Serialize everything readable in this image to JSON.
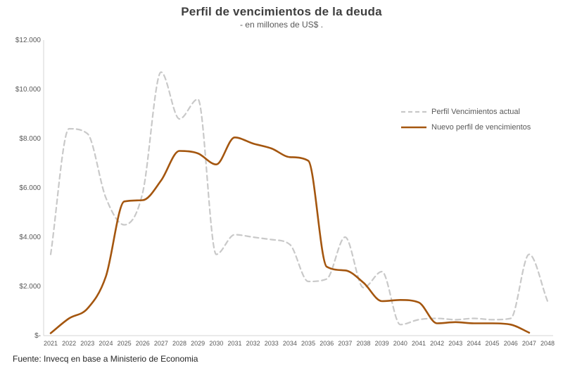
{
  "chart_data": {
    "type": "line",
    "title": "Perfil de vencimientos de la deuda",
    "subtitle": "- en millones de US$ .",
    "source": "Fuente: Invecq en base a Ministerio de Economia",
    "xlabel": "",
    "ylabel": "",
    "x": [
      2021,
      2022,
      2023,
      2024,
      2025,
      2026,
      2027,
      2028,
      2029,
      2030,
      2031,
      2032,
      2033,
      2034,
      2035,
      2036,
      2037,
      2038,
      2039,
      2040,
      2041,
      2042,
      2043,
      2044,
      2045,
      2046,
      2047,
      2048
    ],
    "ylim": [
      0,
      12000
    ],
    "yticks": [
      0,
      2000,
      4000,
      6000,
      8000,
      10000,
      12000
    ],
    "ytick_labels": [
      "$-",
      "$2.000",
      "$4.000",
      "$6.000",
      "$8.000",
      "$10.000",
      "$12.000"
    ],
    "grid": false,
    "legend_position": "center-right",
    "axis_color": "#d6d6d6",
    "series": [
      {
        "name": "Perfil Vencimientos actual",
        "color": "#c9c9c9",
        "dash": true,
        "width": 2.2,
        "values": [
          3300,
          8400,
          8200,
          5600,
          4500,
          5800,
          10700,
          8800,
          9600,
          3300,
          4100,
          4000,
          3900,
          3700,
          2200,
          2300,
          4000,
          1950,
          2600,
          450,
          650,
          700,
          650,
          700,
          650,
          700,
          3300,
          1400
        ]
      },
      {
        "name": "Nuevo perfil de vencimientos",
        "color": "#a4560f",
        "dash": false,
        "width": 2.6,
        "values": [
          100,
          700,
          1100,
          2400,
          5450,
          5500,
          6300,
          7500,
          7400,
          6950,
          8050,
          7800,
          7600,
          7250,
          7100,
          2800,
          2650,
          2150,
          1400,
          1450,
          1350,
          500,
          550,
          500,
          500,
          450,
          120,
          null
        ]
      }
    ]
  }
}
